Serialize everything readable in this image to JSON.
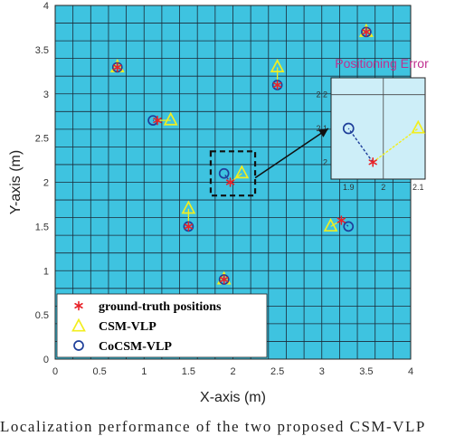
{
  "chart_data": {
    "type": "scatter",
    "xlabel": "X-axis (m)",
    "ylabel": "Y-axis (m)",
    "xlim": [
      0,
      4
    ],
    "ylim": [
      0,
      4
    ],
    "xticks": [
      "0",
      "0.5",
      "1",
      "1.5",
      "2",
      "2.5",
      "3",
      "3.5",
      "4"
    ],
    "yticks": [
      "0",
      "0.5",
      "1",
      "1.5",
      "2",
      "2.5",
      "3",
      "3.5",
      "4"
    ],
    "background_color": "#3ec3e0",
    "grid": true,
    "grid_step": 0.2,
    "legend_position": "bottom-left",
    "series": [
      {
        "name": "ground-truth positions",
        "marker": "star",
        "color": "#e8232a",
        "points": [
          [
            0.7,
            3.3
          ],
          [
            3.5,
            3.7
          ],
          [
            1.15,
            2.7
          ],
          [
            2.5,
            3.1
          ],
          [
            1.97,
            2.0
          ],
          [
            1.5,
            1.5
          ],
          [
            3.22,
            1.57
          ],
          [
            1.9,
            0.9
          ]
        ]
      },
      {
        "name": "CSM-VLP",
        "marker": "triangle",
        "color": "#f2ee1e",
        "points": [
          [
            0.7,
            3.3
          ],
          [
            3.5,
            3.7
          ],
          [
            1.3,
            2.7
          ],
          [
            2.5,
            3.3
          ],
          [
            2.1,
            2.1
          ],
          [
            1.5,
            1.7
          ],
          [
            3.1,
            1.5
          ],
          [
            1.9,
            0.9
          ]
        ]
      },
      {
        "name": "CoCSM-VLP",
        "marker": "circle",
        "color": "#1f3f9a",
        "points": [
          [
            0.7,
            3.3
          ],
          [
            3.5,
            3.7
          ],
          [
            1.1,
            2.7
          ],
          [
            2.5,
            3.1
          ],
          [
            1.9,
            2.1
          ],
          [
            1.5,
            1.5
          ],
          [
            3.3,
            1.5
          ],
          [
            1.9,
            0.9
          ]
        ]
      }
    ],
    "inset": {
      "title": "Positioning Error",
      "title_color": "#c03090",
      "background_color": "#cdeef8",
      "xlim": [
        1.85,
        2.12
      ],
      "ylim": [
        1.95,
        2.25
      ],
      "xticks": [
        "1.9",
        "2",
        "2.1"
      ],
      "yticks": [
        "2",
        "2.1",
        "2.2"
      ],
      "ground_truth": [
        1.97,
        2.0
      ],
      "csm": [
        2.1,
        2.1
      ],
      "cocsm": [
        1.9,
        2.1
      ]
    }
  },
  "caption": "Localization performance of the two proposed CSM-VLP"
}
